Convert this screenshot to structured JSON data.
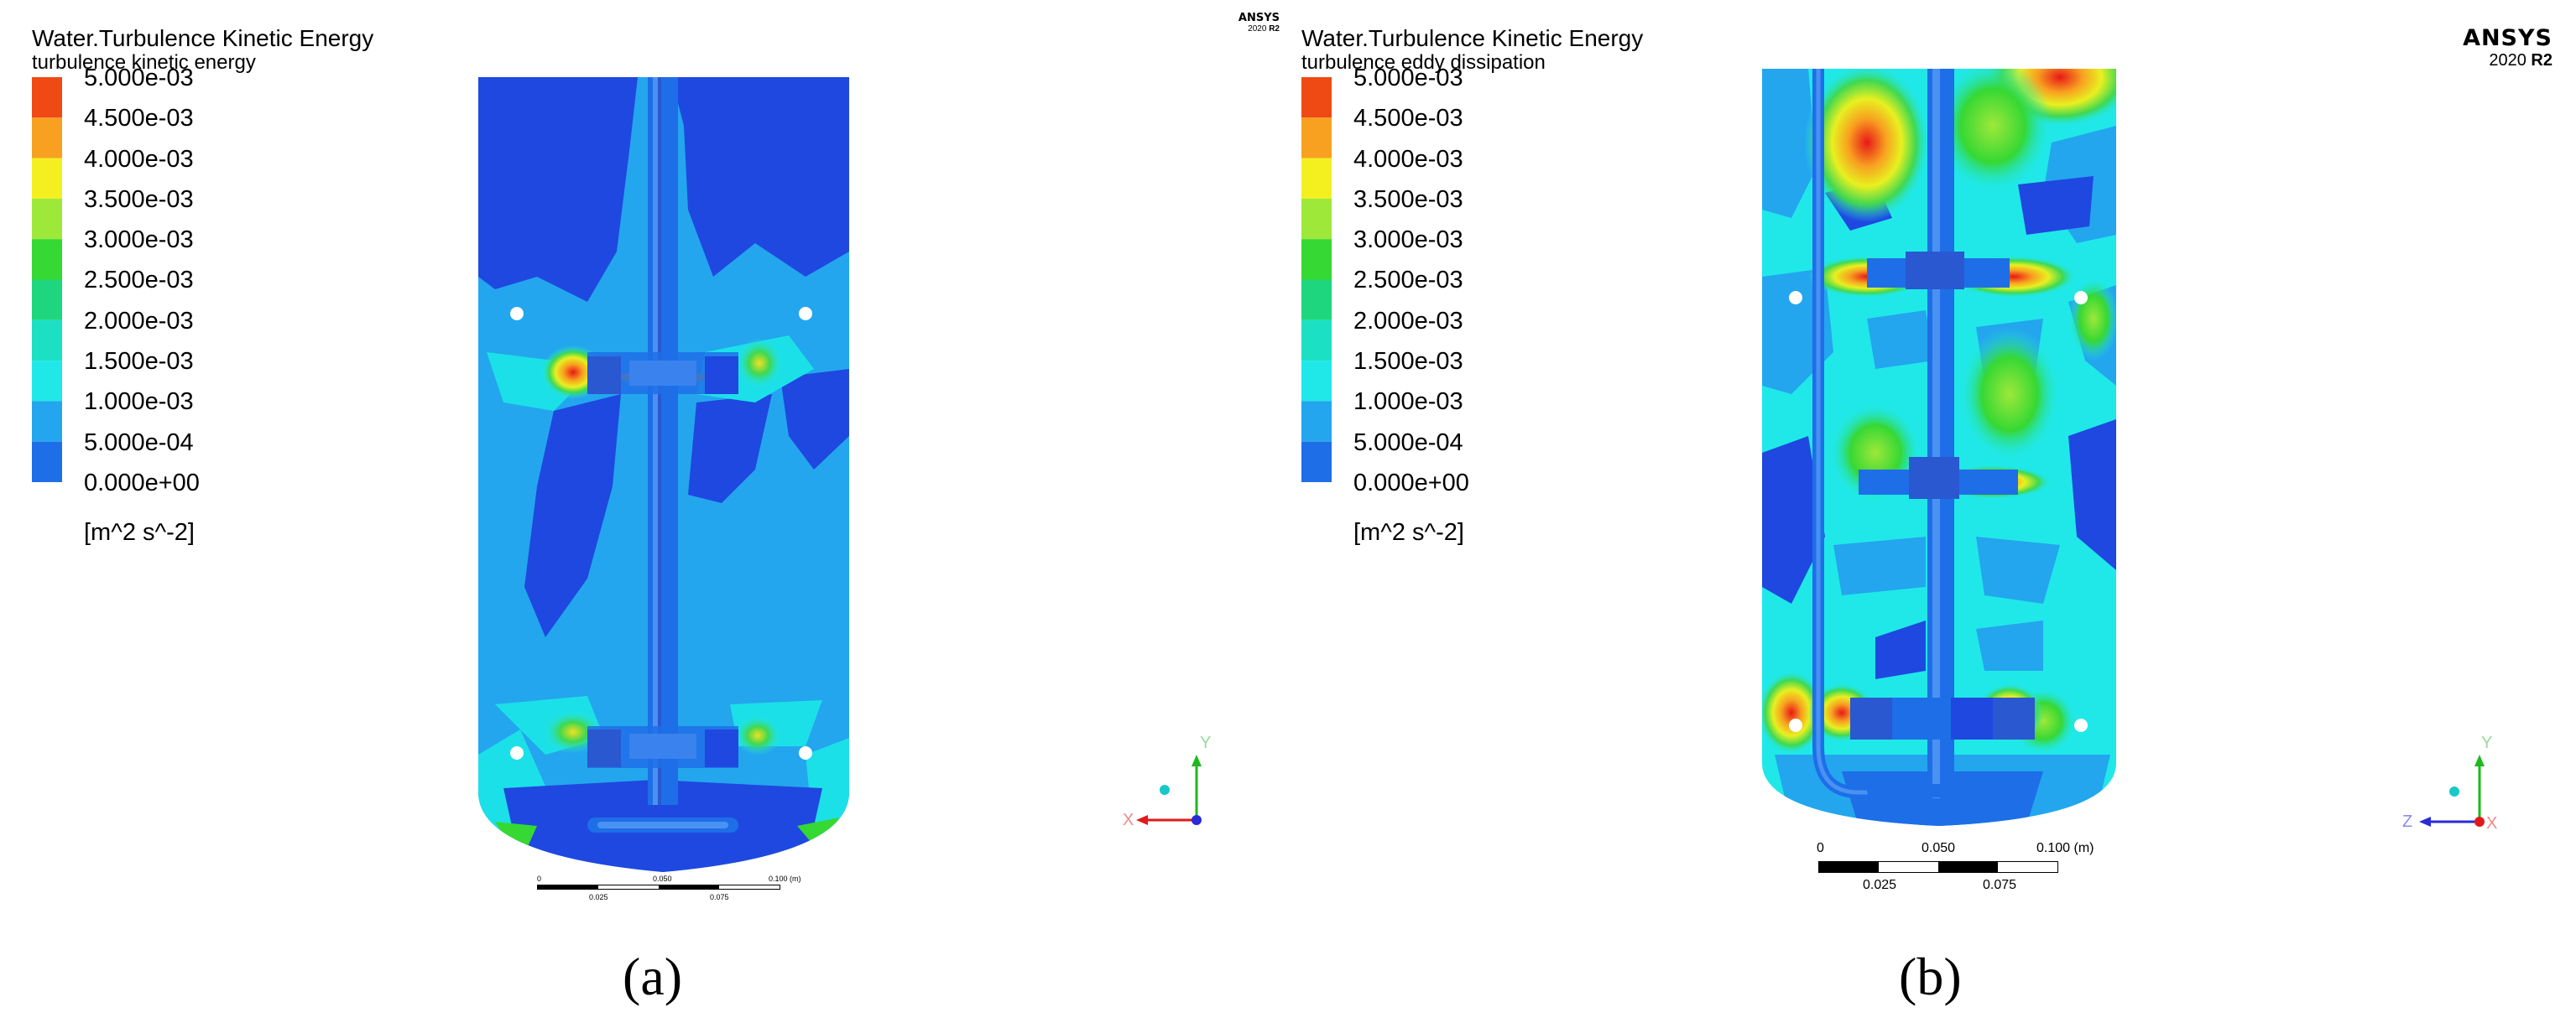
{
  "panels": [
    {
      "id": "a",
      "legend": {
        "title": "Water.Turbulence Kinetic Energy",
        "subtitle": "turbulence kinetic energy",
        "unit": "[m^2 s^-2]",
        "ticks": [
          "5.000e-03",
          "4.500e-03",
          "4.000e-03",
          "3.500e-03",
          "3.000e-03",
          "2.500e-03",
          "2.000e-03",
          "1.500e-03",
          "1.000e-03",
          "5.000e-04",
          "0.000e+00"
        ],
        "colors": [
          "#f04a14",
          "#f8a020",
          "#f4f020",
          "#9ee83a",
          "#36d834",
          "#1ed67e",
          "#1ce0c4",
          "#20e8e8",
          "#23a6ee",
          "#1e6ee8",
          "#1f48e0"
        ]
      },
      "brand": {
        "name": "ANSYS",
        "version_prefix": "2020 ",
        "version_bold": "R2"
      },
      "scale": {
        "labels_top": [
          "0",
          "0.050",
          "0.100  (m)"
        ],
        "labels_bottom": [
          "0.025",
          "0.075"
        ]
      },
      "axes": {
        "labels": [
          "Y",
          "X"
        ]
      },
      "caption": "(a)"
    },
    {
      "id": "b",
      "legend": {
        "title": "Water.Turbulence Kinetic Energy",
        "subtitle": "turbulence eddy dissipation",
        "unit": "[m^2 s^-2]",
        "ticks": [
          "5.000e-03",
          "4.500e-03",
          "4.000e-03",
          "3.500e-03",
          "3.000e-03",
          "2.500e-03",
          "2.000e-03",
          "1.500e-03",
          "1.000e-03",
          "5.000e-04",
          "0.000e+00"
        ],
        "colors": [
          "#f04a14",
          "#f8a020",
          "#f4f020",
          "#9ee83a",
          "#36d834",
          "#1ed67e",
          "#1ce0c4",
          "#20e8e8",
          "#23a6ee",
          "#1e6ee8",
          "#1f48e0"
        ]
      },
      "brand": {
        "name": "ANSYS",
        "version_prefix": "2020 ",
        "version_bold": "R2"
      },
      "scale": {
        "labels_top": [
          "0",
          "0.050",
          "0.100  (m)"
        ],
        "labels_bottom": [
          "0.025",
          "0.075"
        ]
      },
      "axes": {
        "labels": [
          "Y",
          "Z",
          "X"
        ]
      },
      "caption": "(b)"
    }
  ]
}
